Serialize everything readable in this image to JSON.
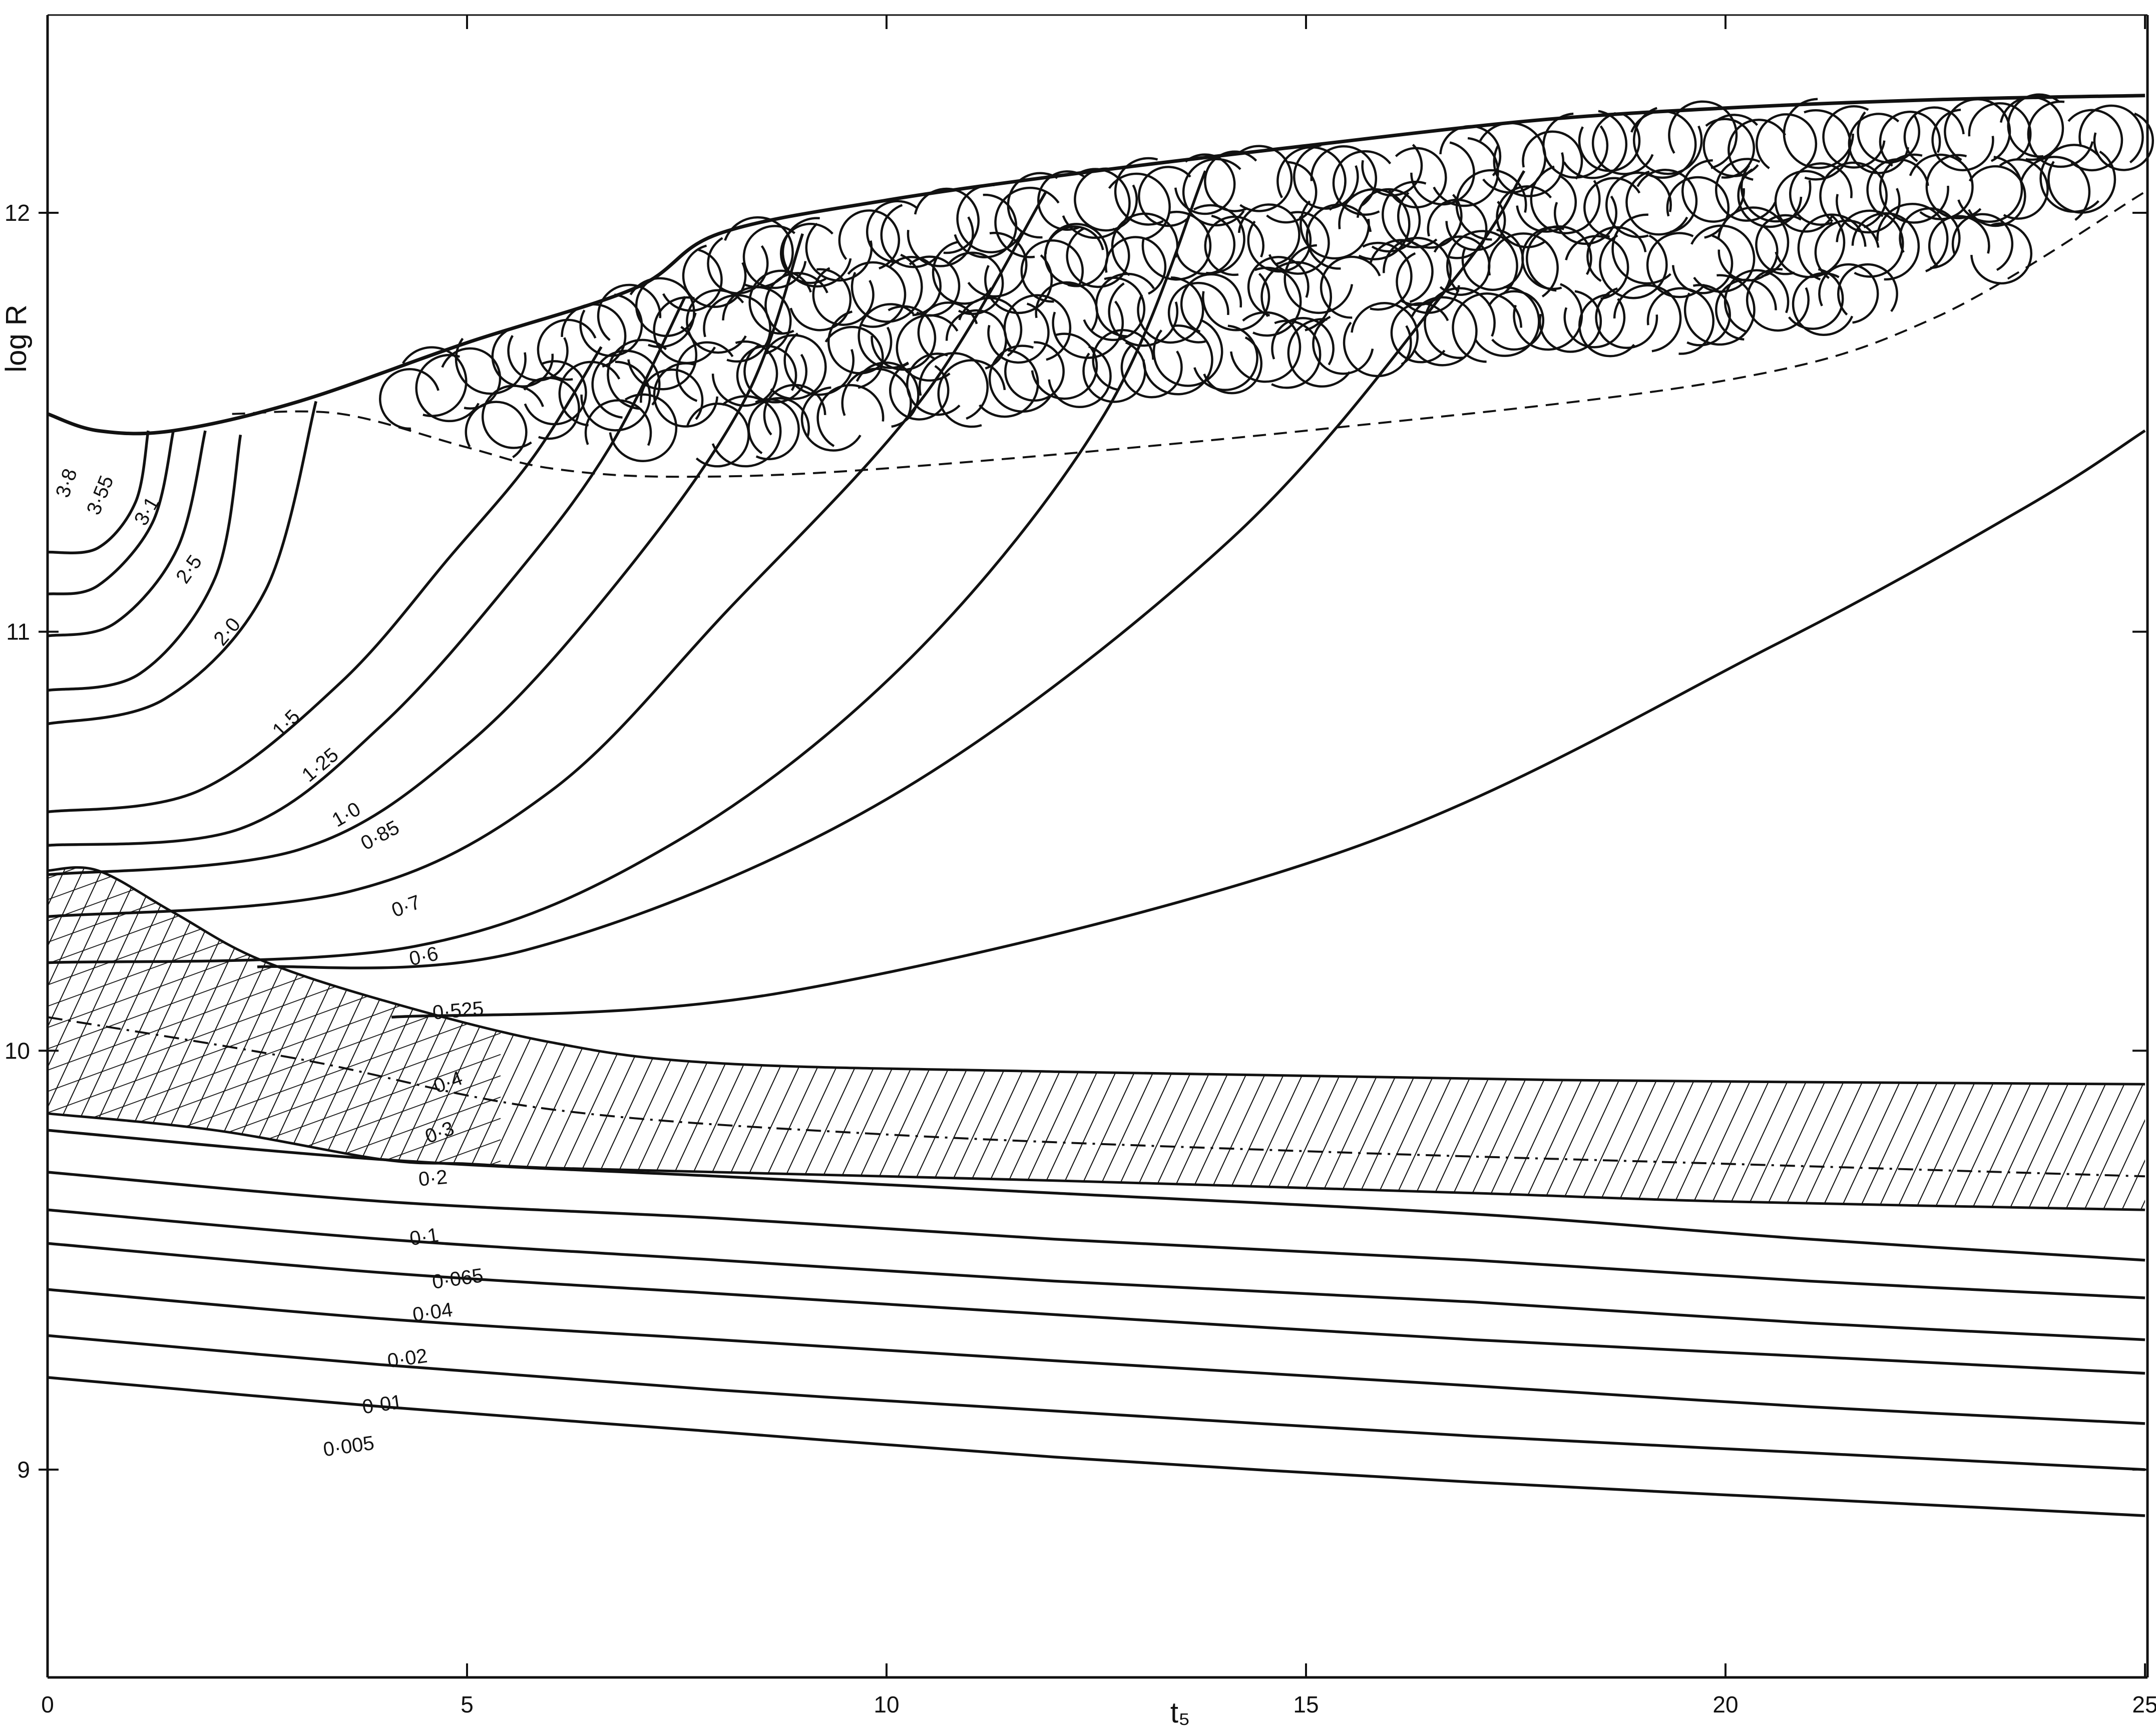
{
  "chart_data": {
    "type": "line",
    "title": "",
    "xlabel": "t₅",
    "ylabel": "log R",
    "xlim": [
      0,
      25
    ],
    "ylim": [
      8.3,
      12.5
    ],
    "grid": false,
    "x_ticks": [
      "0",
      "5",
      "10",
      "15",
      "20",
      "25"
    ],
    "y_ticks": [
      "9",
      "10",
      "11",
      "12"
    ],
    "colors": {
      "ink": "#111111",
      "background": "#ffffff"
    },
    "boundaries": {
      "surface": {
        "x": [
          0,
          0.6,
          1.5,
          3,
          5,
          7,
          8,
          10,
          12.5,
          15,
          17.7,
          20,
          22.5,
          25
        ],
        "y": [
          11.52,
          11.48,
          11.48,
          11.55,
          11.69,
          11.82,
          11.95,
          12.03,
          12.1,
          12.16,
          12.22,
          12.25,
          12.27,
          12.28
        ]
      },
      "convective_envelope_base": {
        "x": [
          2.2,
          3.5,
          5,
          6,
          7.5,
          10,
          15,
          20,
          22.5,
          25
        ],
        "y": [
          11.52,
          11.52,
          11.44,
          11.39,
          11.37,
          11.39,
          11.48,
          11.6,
          11.75,
          12.05
        ]
      },
      "shell_upper": {
        "x": [
          0,
          0.6,
          1.5,
          2.5,
          4,
          6,
          8,
          12,
          18,
          25
        ],
        "y": [
          10.43,
          10.43,
          10.33,
          10.22,
          10.12,
          10.02,
          9.97,
          9.95,
          9.93,
          9.92
        ]
      },
      "shell_lower": {
        "x": [
          0,
          2,
          4,
          5,
          6,
          8,
          12,
          17,
          20,
          25
        ],
        "y": [
          9.85,
          9.81,
          9.74,
          9.73,
          9.72,
          9.71,
          9.69,
          9.66,
          9.64,
          9.62
        ]
      },
      "shell_mid_dashdot": {
        "x": [
          0,
          3,
          6,
          10,
          15,
          20,
          25
        ],
        "y": [
          10.08,
          9.98,
          9.86,
          9.8,
          9.76,
          9.73,
          9.7
        ]
      }
    },
    "regions": [
      {
        "label": "",
        "pattern": "overlapping circles",
        "between": [
          "surface",
          "convective_envelope_base"
        ]
      },
      {
        "label": "",
        "pattern": "diagonal hatching",
        "between": [
          "shell_upper",
          "shell_lower"
        ]
      }
    ],
    "series": [
      {
        "name": "3·8",
        "x": [
          0,
          0.6,
          1.05,
          1.2
        ],
        "y": [
          11.19,
          11.2,
          11.31,
          11.48
        ]
      },
      {
        "name": "3·55",
        "x": [
          0,
          0.6,
          1.25,
          1.5
        ],
        "y": [
          11.09,
          11.11,
          11.26,
          11.48
        ]
      },
      {
        "name": "3·1",
        "x": [
          0,
          0.8,
          1.55,
          1.88
        ],
        "y": [
          10.99,
          11.02,
          11.2,
          11.48
        ]
      },
      {
        "name": "2·5",
        "x": [
          0,
          1.1,
          2.0,
          2.3
        ],
        "y": [
          10.86,
          10.9,
          11.13,
          11.47
        ]
      },
      {
        "name": "2·0",
        "x": [
          0,
          1.4,
          2.6,
          3.2
        ],
        "y": [
          10.78,
          10.84,
          11.1,
          11.55
        ]
      },
      {
        "name": "1·5",
        "x": [
          0,
          1.8,
          3.5,
          4.8,
          5.8,
          6.6
        ],
        "y": [
          10.57,
          10.62,
          10.88,
          11.18,
          11.42,
          11.68
        ]
      },
      {
        "name": "1·25",
        "x": [
          0,
          2.3,
          4.0,
          5.6,
          6.7,
          7.6
        ],
        "y": [
          10.49,
          10.53,
          10.78,
          11.14,
          11.44,
          11.8
        ]
      },
      {
        "name": "1·0",
        "x": [
          0,
          3.0,
          5.0,
          6.8,
          8.3,
          9.0
        ],
        "y": [
          10.42,
          10.48,
          10.73,
          11.12,
          11.55,
          11.95
        ]
      },
      {
        "name": "0·85",
        "x": [
          0,
          3.6,
          6.0,
          8.1,
          10.4,
          11.9
        ],
        "y": [
          10.32,
          10.38,
          10.62,
          11.05,
          11.55,
          12.05
        ]
      },
      {
        "name": "0·7",
        "x": [
          0,
          4.4,
          7.5,
          10.3,
          12.6,
          13.8
        ],
        "y": [
          10.21,
          10.25,
          10.5,
          10.94,
          11.52,
          12.1
        ]
      },
      {
        "name": "0·6",
        "x": [
          2.5,
          5.7,
          10.0,
          14.1,
          16.8,
          17.6
        ],
        "y": [
          10.2,
          10.24,
          10.6,
          11.22,
          11.85,
          12.1
        ]
      },
      {
        "name": "0·525",
        "x": [
          4.1,
          8.8,
          15.5,
          20.6,
          23.6,
          25.0
        ],
        "y": [
          10.08,
          10.14,
          10.48,
          10.97,
          11.3,
          11.48
        ]
      },
      {
        "name": "0·4",
        "x": [],
        "y": []
      },
      {
        "name": "0·3",
        "x": [],
        "y": []
      },
      {
        "name": "0·2",
        "x": [
          0,
          4,
          8,
          12,
          17,
          21,
          25
        ],
        "y": [
          9.81,
          9.74,
          9.7,
          9.66,
          9.61,
          9.55,
          9.5
        ]
      },
      {
        "name": "0·1",
        "x": [
          0,
          4,
          8,
          12,
          17,
          21,
          25
        ],
        "y": [
          9.71,
          9.64,
          9.6,
          9.55,
          9.5,
          9.45,
          9.41
        ]
      },
      {
        "name": "0·065",
        "x": [
          0,
          4,
          8,
          12,
          17,
          21,
          25
        ],
        "y": [
          9.62,
          9.55,
          9.5,
          9.45,
          9.4,
          9.35,
          9.31
        ]
      },
      {
        "name": "0·04",
        "x": [
          0,
          4,
          8,
          12,
          17,
          21,
          25
        ],
        "y": [
          9.54,
          9.47,
          9.42,
          9.37,
          9.31,
          9.27,
          9.23
        ]
      },
      {
        "name": "0·02",
        "x": [
          0,
          4,
          8,
          12,
          17,
          21,
          25
        ],
        "y": [
          9.43,
          9.36,
          9.31,
          9.26,
          9.2,
          9.15,
          9.11
        ]
      },
      {
        "name": "0·01",
        "x": [
          0,
          4,
          8,
          12,
          17,
          21,
          25
        ],
        "y": [
          9.32,
          9.25,
          9.19,
          9.14,
          9.08,
          9.04,
          9.0
        ]
      },
      {
        "name": "0·005",
        "x": [
          0,
          4,
          8,
          12,
          17,
          21,
          25
        ],
        "y": [
          9.22,
          9.15,
          9.09,
          9.03,
          8.97,
          8.93,
          8.89
        ]
      }
    ]
  }
}
